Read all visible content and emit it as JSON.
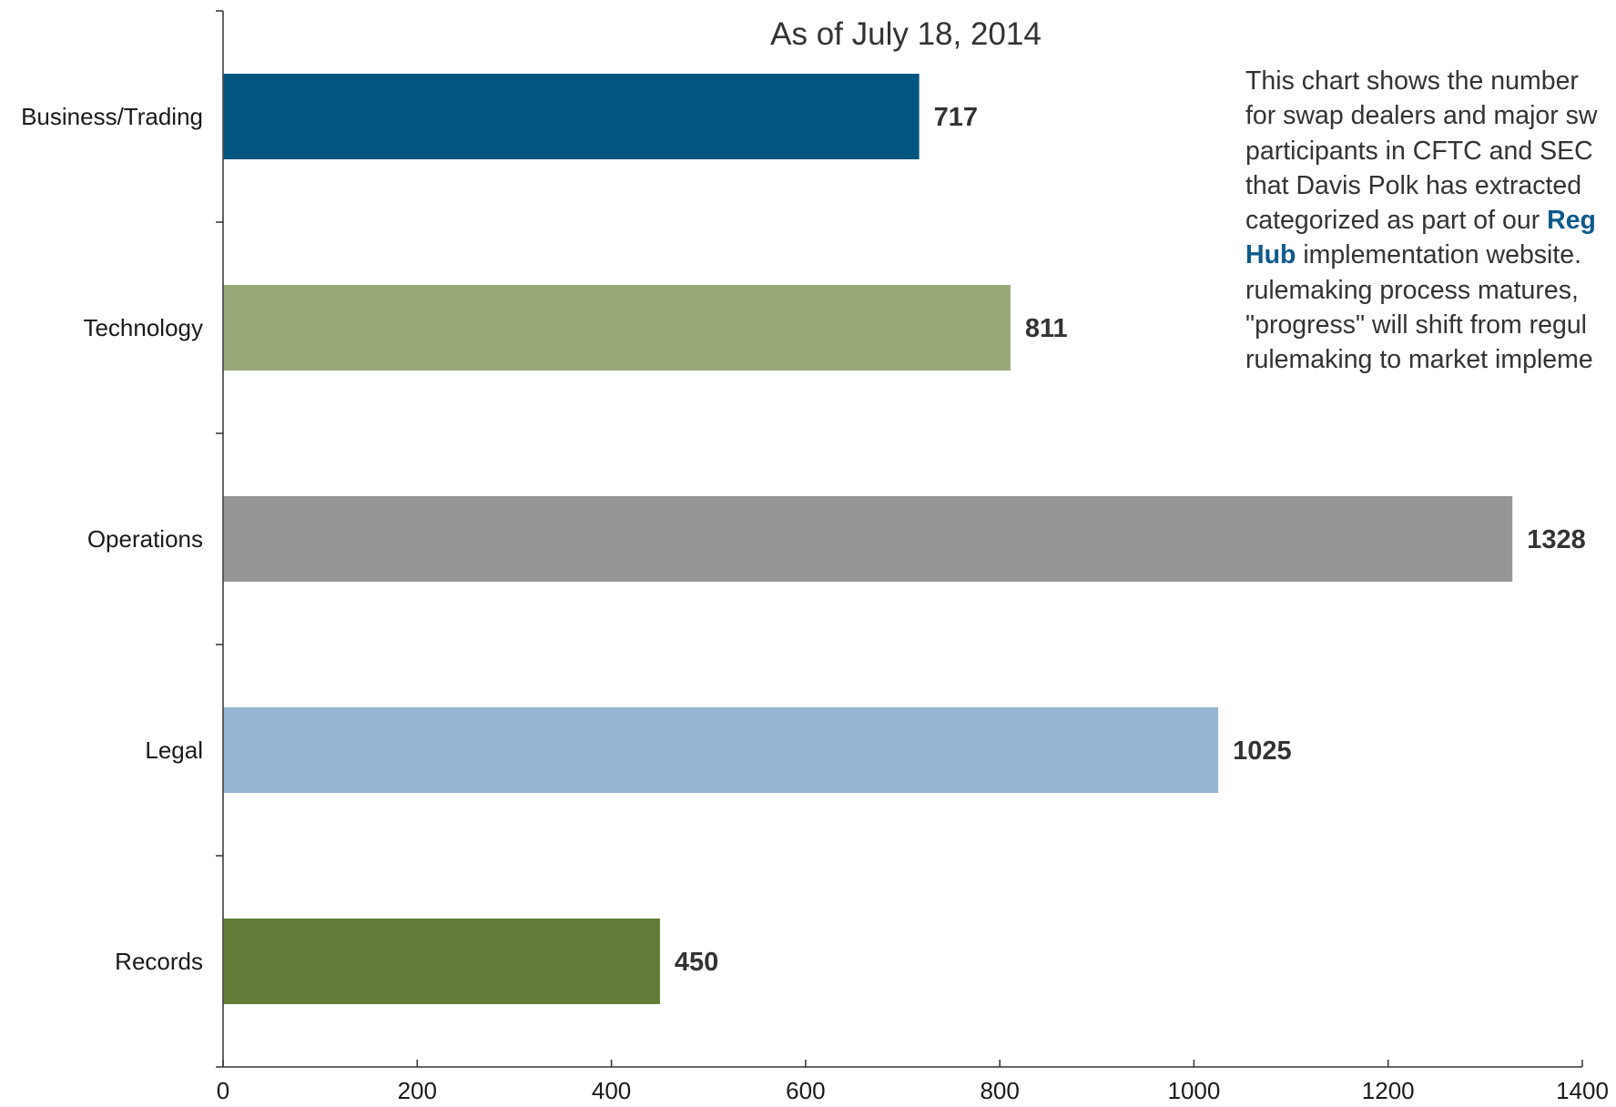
{
  "chart_data": {
    "type": "bar",
    "orientation": "horizontal",
    "subtitle": "As of July 18, 2014",
    "categories": [
      "Business/Trading",
      "Technology",
      "Operations",
      "Legal",
      "Records"
    ],
    "values": [
      717,
      811,
      1328,
      1025,
      450
    ],
    "colors": [
      "#02567f",
      "#98a877",
      "#969696",
      "#95b6d2",
      "#627c38"
    ],
    "xlim": [
      0,
      1400
    ],
    "x_ticks": [
      0,
      200,
      400,
      600,
      800,
      1000,
      1200,
      1400
    ],
    "grid": false,
    "data_labels": true
  },
  "description": {
    "lines": [
      "This chart shows the number",
      "for swap dealers and major sw",
      "participants in CFTC and SEC",
      "that Davis Polk has extracted",
      "categorized as part of our ",
      " implementation website.",
      "rulemaking process matures,",
      "\"progress\" will shift from regul",
      "rulemaking to market impleme"
    ],
    "link_part_1": "Reg",
    "link_part_2": "Hub"
  }
}
